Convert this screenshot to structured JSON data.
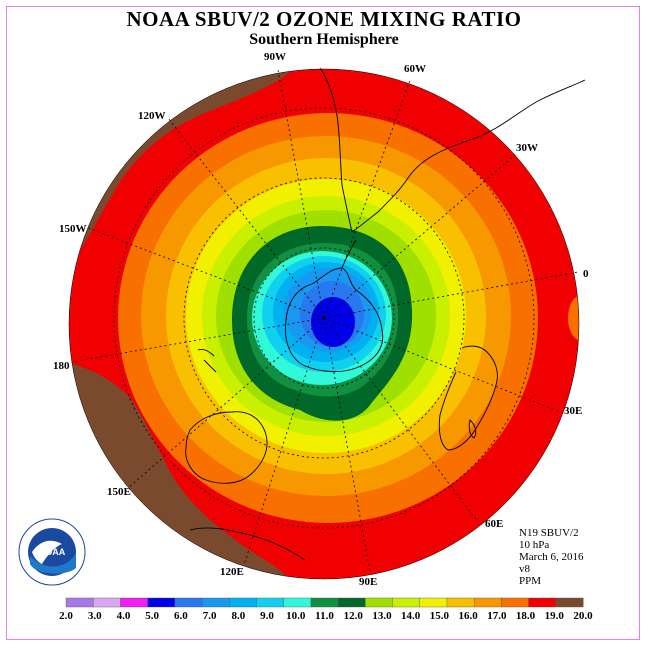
{
  "title": "NOAA SBUV/2 OZONE MIXING RATIO",
  "subtitle": "Southern Hemisphere",
  "longitude_labels": {
    "w90": "90W",
    "w60": "60W",
    "w30": "30W",
    "e0": "0",
    "e30": "30E",
    "e60": "60E",
    "e90": "90E",
    "e120": "120E",
    "e150": "150E",
    "e180": "180",
    "w150": "150W",
    "w120": "120W"
  },
  "info": {
    "instrument": "N19 SBUV/2",
    "pressure": "10 hPa",
    "date": "March 6, 2016",
    "version": "v8",
    "units": "PPM"
  },
  "logo": {
    "text": "NOAA"
  },
  "colorbar": {
    "ticks": [
      "2.0",
      "3.0",
      "4.0",
      "5.0",
      "6.0",
      "7.0",
      "8.0",
      "9.0",
      "10.0",
      "11.0",
      "12.0",
      "13.0",
      "14.0",
      "15.0",
      "16.0",
      "17.0",
      "18.0",
      "19.0",
      "20.0"
    ],
    "colors": [
      "#a878e8",
      "#d8a8f0",
      "#f020f0",
      "#0000e8",
      "#2878f0",
      "#1898f0",
      "#00b0f0",
      "#10d0f0",
      "#30f8d8",
      "#109040",
      "#006828",
      "#a0e000",
      "#c8f000",
      "#f0f000",
      "#f8c000",
      "#f89800",
      "#f87000",
      "#f00000",
      "#7a4a2e"
    ]
  }
}
